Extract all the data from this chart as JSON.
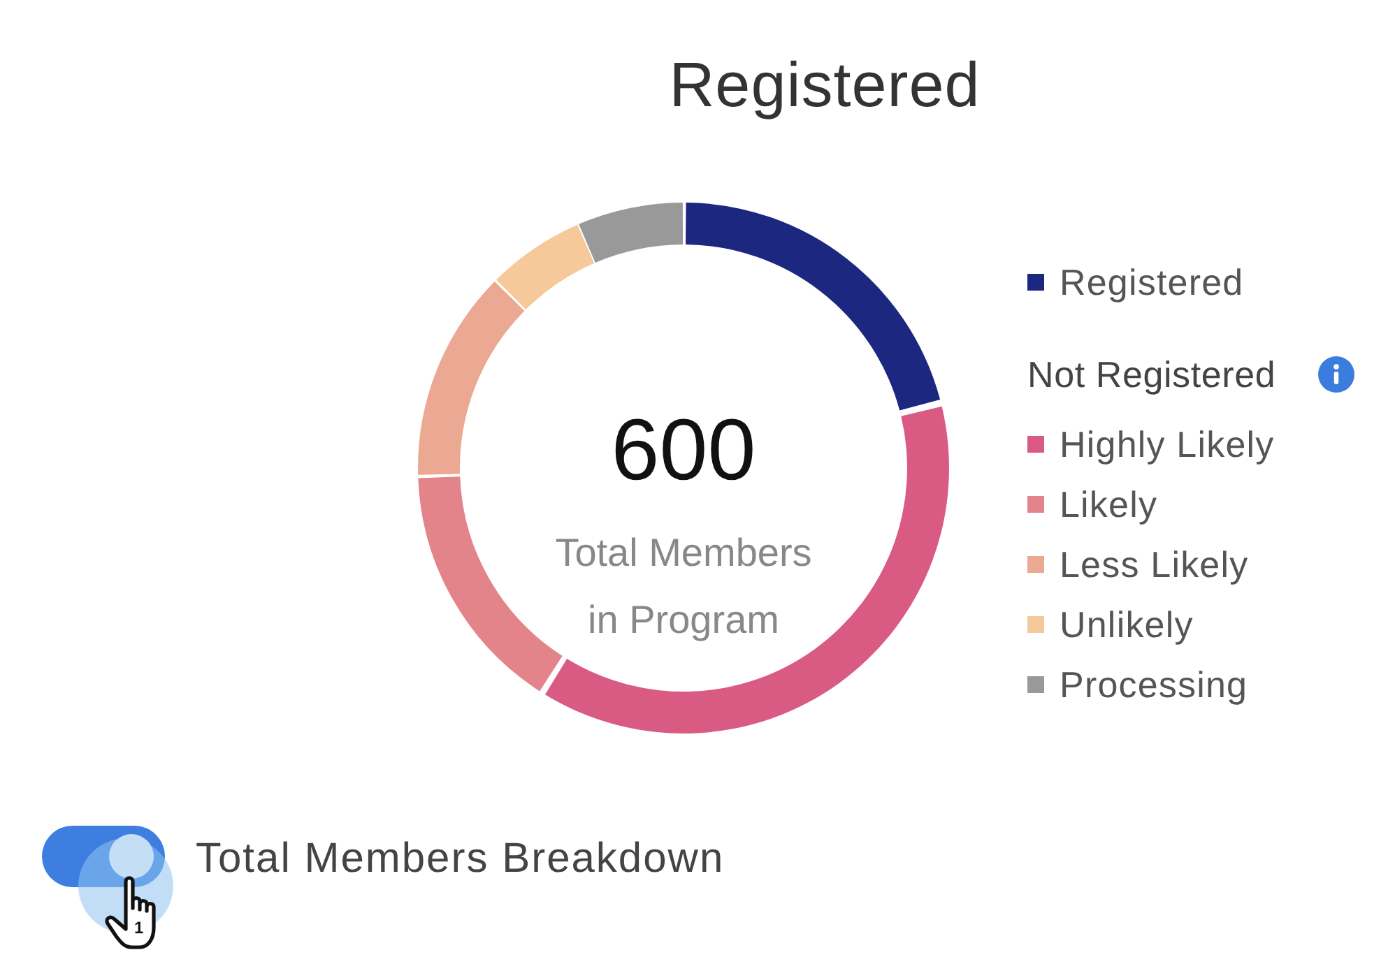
{
  "chart_data": {
    "type": "donut",
    "title": "Registered",
    "categories": [
      "Registered",
      "Highly Likely",
      "Likely",
      "Less Likely",
      "Unlikely",
      "Processing"
    ],
    "values": [
      21,
      38,
      15.5,
      13,
      6,
      6.5
    ],
    "colors": [
      "#1c2780",
      "#d95b84",
      "#e3848a",
      "#eba893",
      "#f5c99a",
      "#999999"
    ],
    "legend": "right",
    "annotations": [
      "600",
      "Total Members in Program",
      "Not Registered",
      "Total Members Breakdown",
      "1"
    ]
  }
}
